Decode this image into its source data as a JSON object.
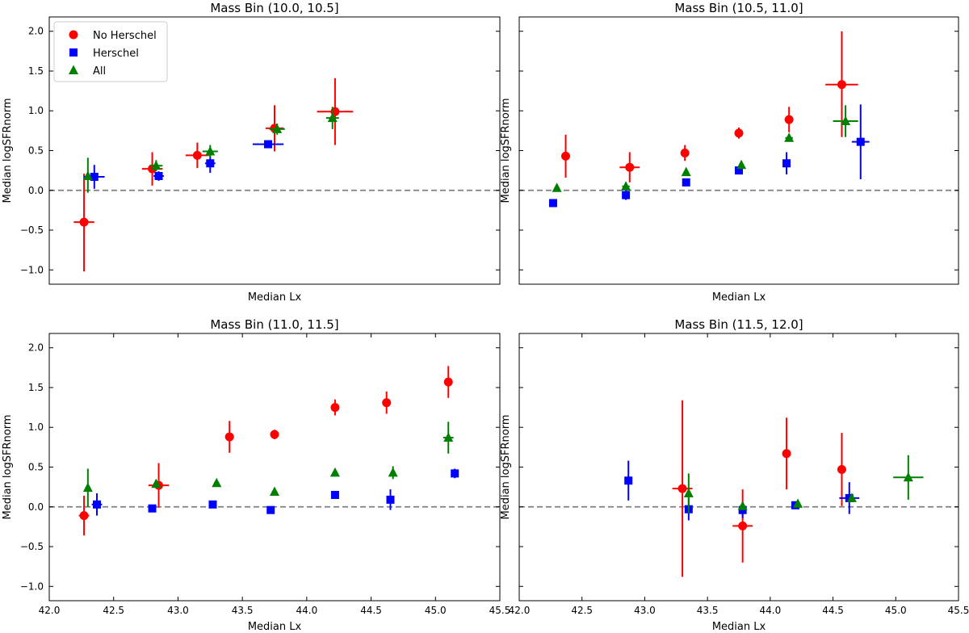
{
  "chart_data": [
    {
      "type": "scatter",
      "title": "Mass Bin (10.0, 10.5]",
      "xlabel": "Median Lx",
      "ylabel": "Median logSFRnorm",
      "xlim": [
        42.0,
        45.5
      ],
      "ylim": [
        -1.18,
        2.18
      ],
      "x_ticks_labeled": false,
      "y_ticks_labeled": true,
      "reference_line_y": 0.0,
      "legend": {
        "placement": "upper-left",
        "entries": [
          "No Herschel",
          "Herschel",
          "All"
        ]
      },
      "series": [
        {
          "name": "No Herschel",
          "color": "#ff0000",
          "marker": "circle",
          "points": [
            {
              "x": 42.27,
              "y": -0.4,
              "xerr": 0.08,
              "yerr": [
                0.62,
                0.61
              ]
            },
            {
              "x": 42.8,
              "y": 0.27,
              "xerr": 0.08,
              "yerr": [
                0.21,
                0.21
              ]
            },
            {
              "x": 43.15,
              "y": 0.44,
              "xerr": 0.09,
              "yerr": [
                0.16,
                0.16
              ]
            },
            {
              "x": 43.75,
              "y": 0.78,
              "xerr": 0.07,
              "yerr": [
                0.29,
                0.29
              ]
            },
            {
              "x": 44.22,
              "y": 0.99,
              "xerr": 0.14,
              "yerr": [
                0.42,
                0.42
              ]
            }
          ]
        },
        {
          "name": "Herschel",
          "color": "#0000ff",
          "marker": "square",
          "points": [
            {
              "x": 42.35,
              "y": 0.17,
              "xerr": 0.08,
              "yerr": [
                0.15,
                0.15
              ]
            },
            {
              "x": 42.85,
              "y": 0.18,
              "xerr": 0.04,
              "yerr": [
                0.06,
                0.06
              ]
            },
            {
              "x": 43.25,
              "y": 0.34,
              "xerr": 0.04,
              "yerr": [
                0.12,
                0.12
              ]
            },
            {
              "x": 43.7,
              "y": 0.58,
              "xerr": 0.12,
              "yerr": [
                0.04,
                0.04
              ]
            }
          ]
        },
        {
          "name": "All",
          "color": "#008000",
          "marker": "triangle",
          "points": [
            {
              "x": 42.3,
              "y": 0.18,
              "xerr": 0.02,
              "yerr": [
                0.21,
                0.23
              ]
            },
            {
              "x": 42.83,
              "y": 0.31,
              "xerr": 0.05,
              "yerr": [
                0.07,
                0.07
              ]
            },
            {
              "x": 43.25,
              "y": 0.49,
              "xerr": 0.06,
              "yerr": [
                0.08,
                0.08
              ]
            },
            {
              "x": 43.77,
              "y": 0.77,
              "xerr": 0.06,
              "yerr": [
                0.07,
                0.07
              ]
            },
            {
              "x": 44.2,
              "y": 0.91,
              "xerr": 0.05,
              "yerr": [
                0.14,
                0.14
              ]
            }
          ]
        }
      ]
    },
    {
      "type": "scatter",
      "title": "Mass Bin (10.5, 11.0]",
      "xlabel": "Median Lx",
      "ylabel": "Median logSFRnorm",
      "xlim": [
        42.0,
        45.5
      ],
      "ylim": [
        -1.18,
        2.18
      ],
      "x_ticks_labeled": false,
      "y_ticks_labeled": false,
      "reference_line_y": 0.0,
      "series": [
        {
          "name": "No Herschel",
          "color": "#ff0000",
          "marker": "circle",
          "points": [
            {
              "x": 42.37,
              "y": 0.43,
              "xerr": 0.02,
              "yerr": [
                0.27,
                0.27
              ]
            },
            {
              "x": 42.88,
              "y": 0.29,
              "xerr": 0.08,
              "yerr": [
                0.19,
                0.19
              ]
            },
            {
              "x": 43.32,
              "y": 0.47,
              "xerr": 0.02,
              "yerr": [
                0.1,
                0.1
              ]
            },
            {
              "x": 43.75,
              "y": 0.72,
              "xerr": 0.03,
              "yerr": [
                0.07,
                0.07
              ]
            },
            {
              "x": 44.15,
              "y": 0.89,
              "xerr": 0.03,
              "yerr": [
                0.16,
                0.16
              ]
            },
            {
              "x": 44.57,
              "y": 1.33,
              "xerr": 0.13,
              "yerr": [
                0.66,
                0.67
              ]
            }
          ]
        },
        {
          "name": "Herschel",
          "color": "#0000ff",
          "marker": "square",
          "points": [
            {
              "x": 42.27,
              "y": -0.16,
              "xerr": 0.02,
              "yerr": [
                0.04,
                0.04
              ]
            },
            {
              "x": 42.85,
              "y": -0.06,
              "xerr": 0.03,
              "yerr": [
                0.06,
                0.06
              ]
            },
            {
              "x": 43.33,
              "y": 0.1,
              "xerr": 0.02,
              "yerr": [
                0.04,
                0.04
              ]
            },
            {
              "x": 43.75,
              "y": 0.25,
              "xerr": 0.03,
              "yerr": [
                0.05,
                0.05
              ]
            },
            {
              "x": 44.13,
              "y": 0.34,
              "xerr": 0.02,
              "yerr": [
                0.14,
                0.14
              ]
            },
            {
              "x": 44.72,
              "y": 0.61,
              "xerr": 0.07,
              "yerr": [
                0.47,
                0.47
              ]
            }
          ]
        },
        {
          "name": "All",
          "color": "#008000",
          "marker": "triangle",
          "points": [
            {
              "x": 42.3,
              "y": 0.03,
              "xerr": 0.02,
              "yerr": [
                0.03,
                0.03
              ]
            },
            {
              "x": 42.85,
              "y": 0.05,
              "xerr": 0.03,
              "yerr": [
                0.05,
                0.05
              ]
            },
            {
              "x": 43.33,
              "y": 0.23,
              "xerr": 0.02,
              "yerr": [
                0.03,
                0.03
              ]
            },
            {
              "x": 43.77,
              "y": 0.32,
              "xerr": 0.02,
              "yerr": [
                0.05,
                0.05
              ]
            },
            {
              "x": 44.15,
              "y": 0.66,
              "xerr": 0.03,
              "yerr": [
                0.05,
                0.05
              ]
            },
            {
              "x": 44.6,
              "y": 0.87,
              "xerr": 0.1,
              "yerr": [
                0.2,
                0.2
              ]
            }
          ]
        }
      ]
    },
    {
      "type": "scatter",
      "title": "Mass Bin (11.0, 11.5]",
      "xlabel": "Median Lx",
      "ylabel": "Median logSFRnorm",
      "xlim": [
        42.0,
        45.5
      ],
      "ylim": [
        -1.18,
        2.18
      ],
      "x_ticks_labeled": true,
      "y_ticks_labeled": true,
      "x_ticks": [
        42.0,
        42.5,
        43.0,
        43.5,
        44.0,
        44.5,
        45.0,
        45.5
      ],
      "reference_line_y": 0.0,
      "series": [
        {
          "name": "No Herschel",
          "color": "#ff0000",
          "marker": "circle",
          "points": [
            {
              "x": 42.27,
              "y": -0.11,
              "xerr": 0.04,
              "yerr": [
                0.25,
                0.25
              ]
            },
            {
              "x": 42.85,
              "y": 0.27,
              "xerr": 0.08,
              "yerr": [
                0.28,
                0.28
              ]
            },
            {
              "x": 43.4,
              "y": 0.88,
              "xerr": 0.02,
              "yerr": [
                0.2,
                0.2
              ]
            },
            {
              "x": 43.75,
              "y": 0.91,
              "xerr": 0.02,
              "yerr": [
                0.06,
                0.06
              ]
            },
            {
              "x": 44.22,
              "y": 1.25,
              "xerr": 0.03,
              "yerr": [
                0.1,
                0.1
              ]
            },
            {
              "x": 44.62,
              "y": 1.31,
              "xerr": 0.03,
              "yerr": [
                0.14,
                0.14
              ]
            },
            {
              "x": 45.1,
              "y": 1.57,
              "xerr": 0.02,
              "yerr": [
                0.2,
                0.2
              ]
            }
          ]
        },
        {
          "name": "Herschel",
          "color": "#0000ff",
          "marker": "square",
          "points": [
            {
              "x": 42.37,
              "y": 0.03,
              "xerr": 0.04,
              "yerr": [
                0.14,
                0.14
              ]
            },
            {
              "x": 42.8,
              "y": -0.02,
              "xerr": 0.02,
              "yerr": [
                0.03,
                0.03
              ]
            },
            {
              "x": 43.27,
              "y": 0.03,
              "xerr": 0.02,
              "yerr": [
                0.02,
                0.02
              ]
            },
            {
              "x": 43.72,
              "y": -0.04,
              "xerr": 0.02,
              "yerr": [
                0.02,
                0.02
              ]
            },
            {
              "x": 44.22,
              "y": 0.15,
              "xerr": 0.02,
              "yerr": [
                0.02,
                0.02
              ]
            },
            {
              "x": 44.65,
              "y": 0.09,
              "xerr": 0.02,
              "yerr": [
                0.13,
                0.13
              ]
            },
            {
              "x": 45.15,
              "y": 0.42,
              "xerr": 0.02,
              "yerr": [
                0.06,
                0.06
              ]
            }
          ]
        },
        {
          "name": "All",
          "color": "#008000",
          "marker": "triangle",
          "points": [
            {
              "x": 42.3,
              "y": 0.24,
              "xerr": 0.02,
              "yerr": [
                0.24,
                0.24
              ]
            },
            {
              "x": 42.83,
              "y": 0.29,
              "xerr": 0.02,
              "yerr": [
                0.05,
                0.05
              ]
            },
            {
              "x": 43.3,
              "y": 0.3,
              "xerr": 0.02,
              "yerr": [
                0.02,
                0.02
              ]
            },
            {
              "x": 43.75,
              "y": 0.19,
              "xerr": 0.02,
              "yerr": [
                0.02,
                0.02
              ]
            },
            {
              "x": 44.22,
              "y": 0.43,
              "xerr": 0.02,
              "yerr": [
                0.02,
                0.02
              ]
            },
            {
              "x": 44.67,
              "y": 0.43,
              "xerr": 0.02,
              "yerr": [
                0.08,
                0.08
              ]
            },
            {
              "x": 45.1,
              "y": 0.87,
              "xerr": 0.04,
              "yerr": [
                0.2,
                0.2
              ]
            }
          ]
        }
      ]
    },
    {
      "type": "scatter",
      "title": "Mass Bin (11.5, 12.0]",
      "xlabel": "Median Lx",
      "ylabel": "Median logSFRnorm",
      "xlim": [
        42.0,
        45.5
      ],
      "ylim": [
        -1.18,
        2.18
      ],
      "x_ticks_labeled": true,
      "y_ticks_labeled": false,
      "x_ticks": [
        42.0,
        42.5,
        43.0,
        43.5,
        44.0,
        44.5,
        45.0,
        45.5
      ],
      "reference_line_y": 0.0,
      "series": [
        {
          "name": "No Herschel",
          "color": "#ff0000",
          "marker": "circle",
          "points": [
            {
              "x": 43.3,
              "y": 0.23,
              "xerr": 0.08,
              "yerr": [
                1.11,
                1.11
              ]
            },
            {
              "x": 43.78,
              "y": -0.24,
              "xerr": 0.08,
              "yerr": [
                0.46,
                0.46
              ]
            },
            {
              "x": 44.13,
              "y": 0.67,
              "xerr": 0.02,
              "yerr": [
                0.45,
                0.45
              ]
            },
            {
              "x": 44.57,
              "y": 0.47,
              "xerr": 0.02,
              "yerr": [
                0.46,
                0.46
              ]
            }
          ]
        },
        {
          "name": "Herschel",
          "color": "#0000ff",
          "marker": "square",
          "points": [
            {
              "x": 42.87,
              "y": 0.33,
              "xerr": 0.02,
              "yerr": [
                0.25,
                0.25
              ]
            },
            {
              "x": 43.35,
              "y": -0.03,
              "xerr": 0.02,
              "yerr": [
                0.14,
                0.14
              ]
            },
            {
              "x": 43.78,
              "y": -0.04,
              "xerr": 0.02,
              "yerr": [
                0.1,
                0.1
              ]
            },
            {
              "x": 44.2,
              "y": 0.02,
              "xerr": 0.02,
              "yerr": [
                0.03,
                0.03
              ]
            },
            {
              "x": 44.63,
              "y": 0.11,
              "xerr": 0.08,
              "yerr": [
                0.2,
                0.2
              ]
            }
          ]
        },
        {
          "name": "All",
          "color": "#008000",
          "marker": "triangle",
          "points": [
            {
              "x": 43.35,
              "y": 0.17,
              "xerr": 0.02,
              "yerr": [
                0.25,
                0.25
              ]
            },
            {
              "x": 43.78,
              "y": 0.01,
              "xerr": 0.02,
              "yerr": [
                0.04,
                0.04
              ]
            },
            {
              "x": 44.22,
              "y": 0.04,
              "xerr": 0.02,
              "yerr": [
                0.02,
                0.02
              ]
            },
            {
              "x": 44.65,
              "y": 0.11,
              "xerr": 0.02,
              "yerr": [
                0.04,
                0.04
              ]
            },
            {
              "x": 45.1,
              "y": 0.37,
              "xerr": 0.12,
              "yerr": [
                0.28,
                0.28
              ]
            }
          ]
        }
      ]
    }
  ]
}
